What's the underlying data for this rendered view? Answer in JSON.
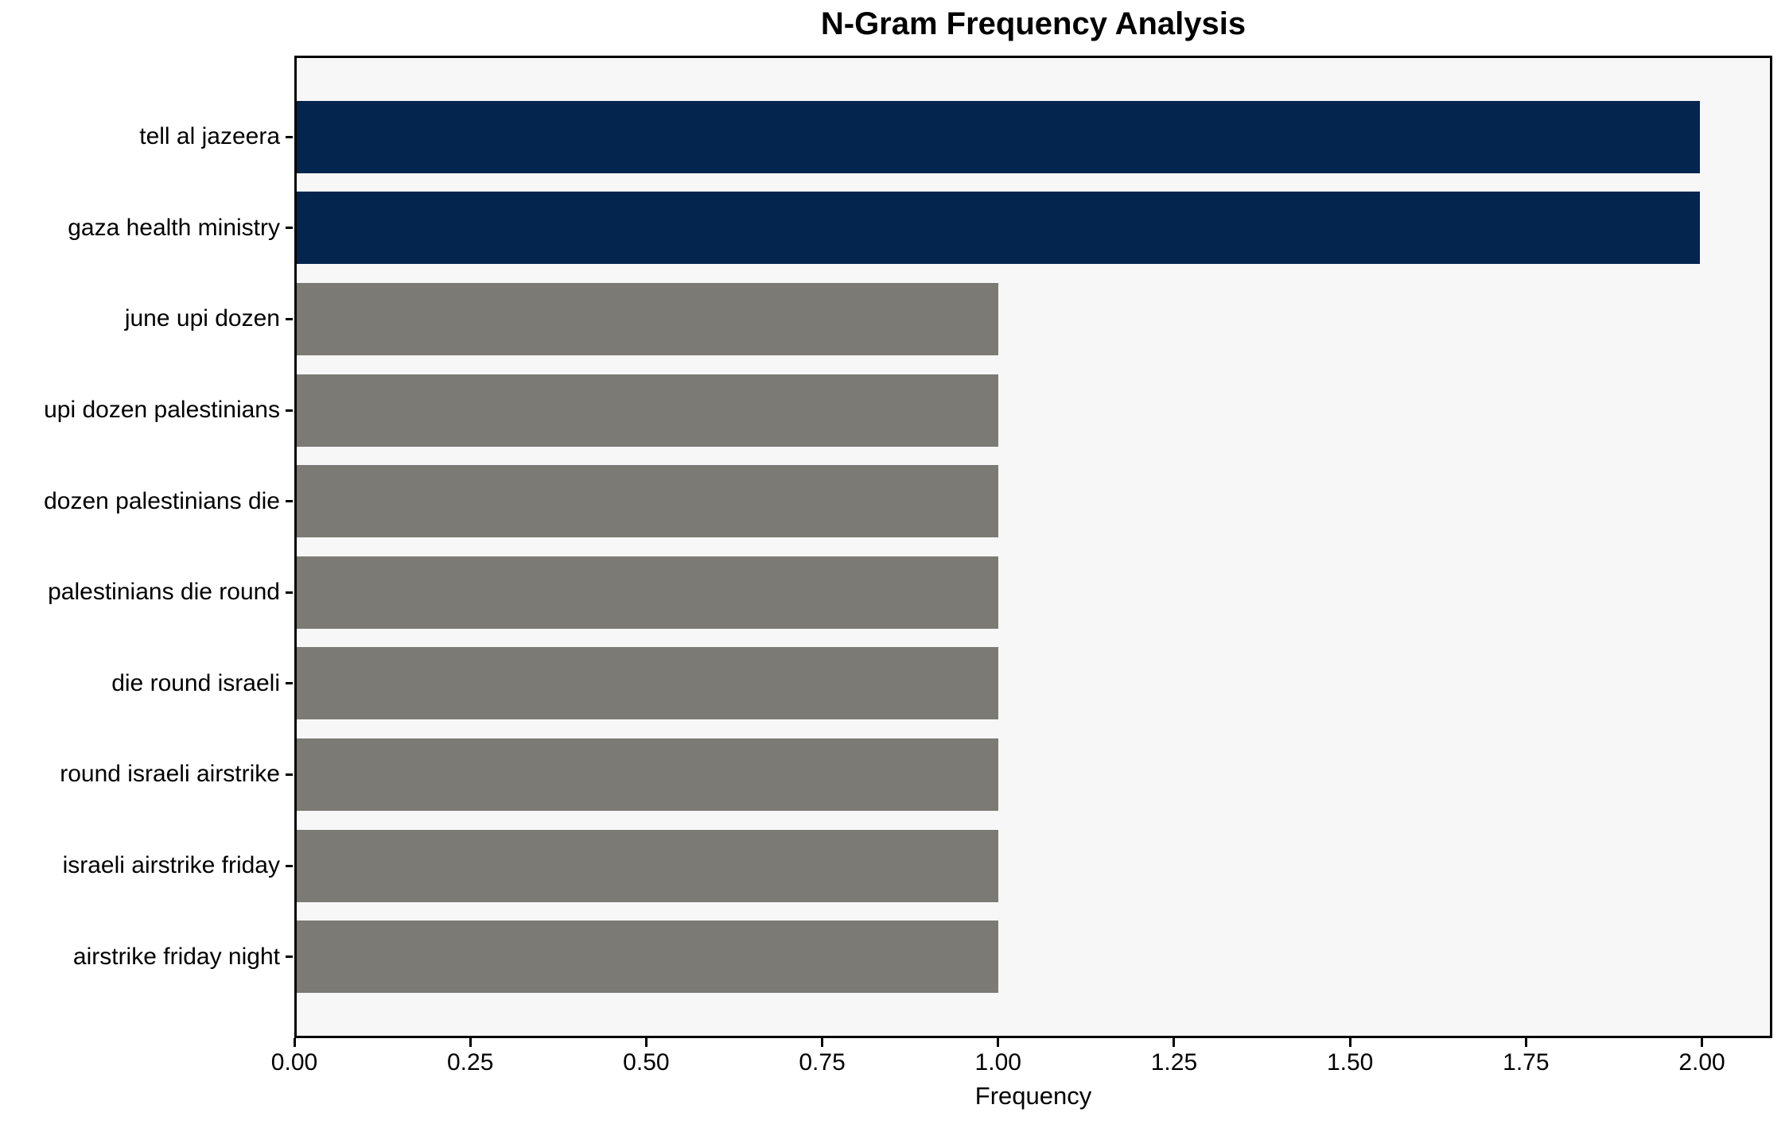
{
  "chart_data": {
    "type": "bar",
    "orientation": "horizontal",
    "title": "N-Gram Frequency Analysis",
    "xlabel": "Frequency",
    "ylabel": "",
    "categories": [
      "tell al jazeera",
      "gaza health ministry",
      "june upi dozen",
      "upi dozen palestinians",
      "dozen palestinians die",
      "palestinians die round",
      "die round israeli",
      "round israeli airstrike",
      "israeli airstrike friday",
      "airstrike friday night"
    ],
    "values": [
      2,
      2,
      1,
      1,
      1,
      1,
      1,
      1,
      1,
      1
    ],
    "bar_colors": [
      "#03254e",
      "#03254e",
      "#7b7a75",
      "#7b7a75",
      "#7b7a75",
      "#7b7a75",
      "#7b7a75",
      "#7b7a75",
      "#7b7a75",
      "#7b7a75"
    ],
    "xlim": [
      0,
      2.1
    ],
    "xticks": [
      0.0,
      0.25,
      0.5,
      0.75,
      1.0,
      1.25,
      1.5,
      1.75,
      2.0
    ],
    "xtick_labels": [
      "0.00",
      "0.25",
      "0.50",
      "0.75",
      "1.00",
      "1.25",
      "1.50",
      "1.75",
      "2.00"
    ],
    "plot_background": "#f7f7f7",
    "figure_background": "#ffffff",
    "grid": false,
    "legend": null
  }
}
